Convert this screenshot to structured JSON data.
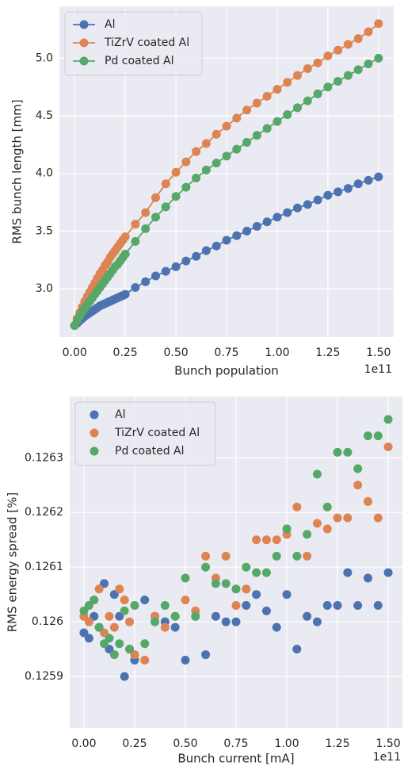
{
  "chart_data": [
    {
      "type": "line",
      "xlabel": "Bunch population",
      "ylabel": "RMS bunch length [mm]",
      "x_offset_label": "1e11",
      "grid": true,
      "legend": "upper left",
      "xlim": [
        -0.075,
        1.575
      ],
      "ylim": [
        2.58,
        5.45
      ],
      "xticks": [
        {
          "value": 0,
          "label": "0.00"
        },
        {
          "value": 0.25,
          "label": "0.25"
        },
        {
          "value": 0.5,
          "label": "0.50"
        },
        {
          "value": 0.75,
          "label": "0.75"
        },
        {
          "value": 1,
          "label": "1.00"
        },
        {
          "value": 1.25,
          "label": "1.25"
        },
        {
          "value": 1.5,
          "label": "1.50"
        }
      ],
      "yticks": [
        {
          "value": 3,
          "label": "3.0"
        },
        3.5,
        {
          "value": 4,
          "label": "4.0"
        },
        4.5,
        {
          "value": 5,
          "label": "5.0"
        }
      ],
      "x": [
        0,
        0.0125,
        0.025,
        0.0375,
        0.05,
        0.0625,
        0.075,
        0.0875,
        0.1,
        0.1125,
        0.125,
        0.1375,
        0.15,
        0.1625,
        0.175,
        0.1875,
        0.2,
        0.2125,
        0.225,
        0.2375,
        0.25,
        0.3,
        0.35,
        0.4,
        0.45,
        0.5,
        0.55,
        0.6,
        0.65,
        0.7,
        0.75,
        0.8,
        0.85,
        0.9,
        0.95,
        1.0,
        1.05,
        1.1,
        1.15,
        1.2,
        1.25,
        1.3,
        1.35,
        1.4,
        1.45,
        1.5
      ],
      "series": [
        {
          "name": "Al",
          "color": "#4c72b0",
          "values": [
            2.68,
            2.7,
            2.72,
            2.74,
            2.76,
            2.775,
            2.79,
            2.805,
            2.82,
            2.835,
            2.85,
            2.86,
            2.87,
            2.88,
            2.89,
            2.9,
            2.91,
            2.92,
            2.93,
            2.94,
            2.95,
            3.01,
            3.06,
            3.11,
            3.15,
            3.19,
            3.24,
            3.28,
            3.33,
            3.37,
            3.42,
            3.46,
            3.5,
            3.54,
            3.58,
            3.62,
            3.66,
            3.7,
            3.73,
            3.77,
            3.81,
            3.84,
            3.87,
            3.91,
            3.94,
            3.97
          ]
        },
        {
          "name": "TiZrV coated Al",
          "color": "#dd8452",
          "values": [
            2.68,
            2.74,
            2.79,
            2.84,
            2.89,
            2.93,
            2.97,
            3.01,
            3.05,
            3.09,
            3.13,
            3.16,
            3.2,
            3.23,
            3.27,
            3.3,
            3.33,
            3.36,
            3.39,
            3.42,
            3.45,
            3.56,
            3.66,
            3.79,
            3.91,
            4.01,
            4.1,
            4.19,
            4.26,
            4.34,
            4.41,
            4.48,
            4.55,
            4.61,
            4.67,
            4.73,
            4.79,
            4.85,
            4.91,
            4.96,
            5.02,
            5.07,
            5.12,
            5.17,
            5.23,
            5.3
          ]
        },
        {
          "name": "Pd coated Al",
          "color": "#55a868",
          "values": [
            2.68,
            2.72,
            2.76,
            2.8,
            2.83,
            2.86,
            2.89,
            2.92,
            2.95,
            2.98,
            3.01,
            3.04,
            3.07,
            3.1,
            3.13,
            3.16,
            3.19,
            3.21,
            3.24,
            3.27,
            3.3,
            3.41,
            3.52,
            3.62,
            3.71,
            3.8,
            3.88,
            3.96,
            4.03,
            4.09,
            4.15,
            4.21,
            4.27,
            4.33,
            4.39,
            4.45,
            4.51,
            4.57,
            4.63,
            4.69,
            4.75,
            4.8,
            4.85,
            4.9,
            4.95,
            5.0
          ]
        }
      ]
    },
    {
      "type": "scatter",
      "xlabel": "Bunch current [mA]",
      "ylabel": "RMS energy spread [%]",
      "x_offset_label": "1e11",
      "grid": true,
      "legend": "upper left",
      "xlim": [
        -0.07,
        1.57
      ],
      "ylim": [
        0.125806,
        0.126412
      ],
      "xticks": [
        {
          "value": 0,
          "label": "0.00"
        },
        {
          "value": 0.25,
          "label": "0.25"
        },
        {
          "value": 0.5,
          "label": "0.50"
        },
        {
          "value": 0.75,
          "label": "0.75"
        },
        {
          "value": 1,
          "label": "1.00"
        },
        {
          "value": 1.25,
          "label": "1.25"
        },
        {
          "value": 1.5,
          "label": "1.50"
        }
      ],
      "yticks": [
        0.1259,
        0.126,
        0.1261,
        0.1262,
        0.1263
      ],
      "x": [
        0,
        0.025,
        0.05,
        0.075,
        0.1,
        0.125,
        0.15,
        0.175,
        0.2,
        0.225,
        0.25,
        0.3,
        0.35,
        0.4,
        0.45,
        0.5,
        0.55,
        0.6,
        0.65,
        0.7,
        0.75,
        0.8,
        0.85,
        0.9,
        0.95,
        1.0,
        1.05,
        1.1,
        1.15,
        1.2,
        1.25,
        1.3,
        1.35,
        1.4,
        1.45,
        1.5
      ],
      "series": [
        {
          "name": "Al",
          "color": "#4c72b0",
          "values": [
            0.12598,
            0.12597,
            0.12601,
            0.12599,
            0.12607,
            0.12595,
            0.12605,
            0.12601,
            0.1259,
            0.12595,
            0.12593,
            0.12604,
            0.12601,
            0.126,
            0.12599,
            0.12593,
            0.12601,
            0.12594,
            0.12601,
            0.126,
            0.126,
            0.12603,
            0.12605,
            0.12602,
            0.12599,
            0.12605,
            0.12595,
            0.12601,
            0.126,
            0.12603,
            0.12603,
            0.12609,
            0.12603,
            0.12608,
            0.12603,
            0.12609
          ]
        },
        {
          "name": "TiZrV coated Al",
          "color": "#dd8452",
          "values": [
            0.12601,
            0.126,
            0.12604,
            0.12606,
            0.12598,
            0.12601,
            0.12599,
            0.12606,
            0.12604,
            0.126,
            0.12594,
            0.12593,
            0.12601,
            0.12599,
            0.12601,
            0.12604,
            0.12602,
            0.12612,
            0.12608,
            0.12612,
            0.12603,
            0.12606,
            0.12615,
            0.12615,
            0.12615,
            0.12616,
            0.12621,
            0.12612,
            0.12618,
            0.12617,
            0.12619,
            0.12619,
            0.12625,
            0.12622,
            0.12619,
            0.12632
          ]
        },
        {
          "name": "Pd coated Al",
          "color": "#55a868",
          "values": [
            0.12602,
            0.12603,
            0.12604,
            0.12599,
            0.12596,
            0.12597,
            0.12594,
            0.12596,
            0.12602,
            0.12595,
            0.12603,
            0.12596,
            0.126,
            0.12603,
            0.12601,
            0.12608,
            0.12601,
            0.1261,
            0.12607,
            0.12607,
            0.12606,
            0.1261,
            0.12609,
            0.12609,
            0.12612,
            0.12617,
            0.12612,
            0.12616,
            0.12627,
            0.12621,
            0.12631,
            0.12631,
            0.12628,
            0.12634,
            0.12634,
            0.12637
          ]
        }
      ]
    }
  ]
}
